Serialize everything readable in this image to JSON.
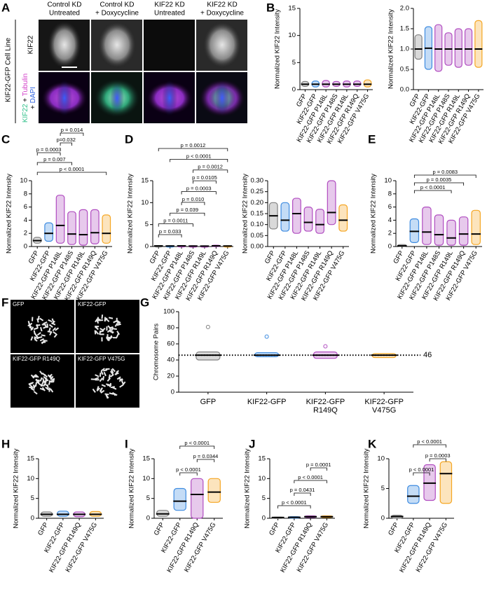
{
  "figure": {
    "panels": [
      "A",
      "B",
      "C",
      "D",
      "E",
      "F",
      "G",
      "H",
      "I",
      "J",
      "K"
    ],
    "a": {
      "headers": [
        [
          "Control KD",
          "Untreated"
        ],
        [
          "Control KD",
          "+ Doxycycline"
        ],
        [
          "KIF22 KD",
          "Untreated"
        ],
        [
          "KIF22 KD",
          "+ Doxycycline"
        ]
      ],
      "row1": "KIF22",
      "row2": [
        [
          "KIF22",
          " + ",
          "Tubulin"
        ],
        [
          "+ ",
          "DAPI"
        ]
      ],
      "side": "KIF22-GFP Cell Line"
    },
    "f": {
      "labels": [
        "GFP",
        "KIF22-GFP",
        "KIF22-GFP R149Q",
        "KIF22-GFP V475G"
      ]
    }
  },
  "chart_data": [
    {
      "type": "strip",
      "ylabel": "Normalized KIF22 Intensity",
      "categories": [
        "GFP",
        "KIF22-GFP",
        "KIF22-GFP P148L",
        "KIF22-GFP P148S",
        "KIF22-GFP R149L",
        "KIF22-GFP R149Q",
        "KIF22-GFP V475G"
      ],
      "colors": [
        "#808080",
        "#3d8be0",
        "#b04cc0",
        "#b04cc0",
        "#b04cc0",
        "#b04cc0",
        "#f5a623"
      ],
      "values": [
        1,
        1,
        1,
        1,
        1,
        1,
        1
      ],
      "spread": [
        [
          0.6,
          1.5
        ],
        [
          0.5,
          1.6
        ],
        [
          0.5,
          1.7
        ],
        [
          0.6,
          1.5
        ],
        [
          0.5,
          1.6
        ],
        [
          0.6,
          1.6
        ],
        [
          0.5,
          1.8
        ]
      ],
      "ylim": [
        0,
        15
      ],
      "yticks": [
        0,
        5,
        10,
        15
      ]
    },
    {
      "type": "strip",
      "ylabel": "Normalized KIF22 Intensity",
      "categories": [
        "GFP",
        "KIF22-GFP",
        "KIF22-GFP P148L",
        "KIF22-GFP P148S",
        "KIF22-GFP R149L",
        "KIF22-GFP R149Q",
        "KIF22-GFP V475G"
      ],
      "colors": [
        "#808080",
        "#3d8be0",
        "#b04cc0",
        "#b04cc0",
        "#b04cc0",
        "#b04cc0",
        "#f5a623"
      ],
      "values": [
        1,
        1.02,
        1,
        1,
        1,
        1,
        1
      ],
      "spread": [
        [
          0.75,
          1.35
        ],
        [
          0.5,
          1.55
        ],
        [
          0.45,
          1.6
        ],
        [
          0.6,
          1.4
        ],
        [
          0.55,
          1.5
        ],
        [
          0.6,
          1.5
        ],
        [
          0.55,
          1.7
        ]
      ],
      "ylim": [
        0,
        2
      ],
      "yticks": [
        {
          "value": 0,
          "label": "0.0"
        },
        0.5,
        {
          "value": 1,
          "label": "1.0"
        },
        1.5,
        {
          "value": 2,
          "label": "2.0"
        }
      ]
    },
    {
      "type": "strip",
      "ylabel": "Normalized KIF22 Intensity",
      "categories": [
        "GFP",
        "KIF22-GFP",
        "KIF22-GFP P148L",
        "KIF22-GFP P148S",
        "KIF22-GFP R149L",
        "KIF22-GFP R149Q",
        "KIF22-GFP V475G"
      ],
      "colors": [
        "#808080",
        "#3d8be0",
        "#b04cc0",
        "#b04cc0",
        "#b04cc0",
        "#b04cc0",
        "#f5a623"
      ],
      "values": [
        0.9,
        2,
        3.2,
        1.9,
        1.8,
        2.1,
        2
      ],
      "spread": [
        [
          0.5,
          1.4
        ],
        [
          0.8,
          3.6
        ],
        [
          0.5,
          7.8
        ],
        [
          0.3,
          5.3
        ],
        [
          0.2,
          5.6
        ],
        [
          0.4,
          5.6
        ],
        [
          0.5,
          4.8
        ]
      ],
      "ylim": [
        0,
        10
      ],
      "yticks": [
        0,
        2,
        4,
        6,
        8,
        10
      ],
      "comparisons": [
        {
          "label": "p < 0.0001",
          "from": 0,
          "to": 6
        },
        {
          "label": "p = 0.007",
          "from": 0,
          "to": 3
        },
        {
          "label": "p = 0.0003",
          "from": 0,
          "to": 2
        },
        {
          "label": "p=0.032",
          "from": 2,
          "to": 3
        },
        {
          "label": "p = 0.014",
          "from": 2,
          "to": 4
        }
      ]
    },
    {
      "type": "strip",
      "ylabel": "Normalized KIF22 Intensity",
      "categories": [
        "GFP",
        "KIF22-GFP",
        "KIF22-GFP P148L",
        "KIF22-GFP P148S",
        "KIF22-GFP R149L",
        "KIF22-GFP R149Q",
        "KIF22-GFP V475G"
      ],
      "colors": [
        "#808080",
        "#3d8be0",
        "#b04cc0",
        "#b04cc0",
        "#b04cc0",
        "#b04cc0",
        "#f5a623"
      ],
      "values": [
        0.14,
        0.12,
        0.15,
        0.11,
        0.1,
        0.155,
        0.12
      ],
      "spread": [
        [
          0.08,
          0.2
        ],
        [
          0.07,
          0.2
        ],
        [
          0.06,
          0.22
        ],
        [
          0.07,
          0.18
        ],
        [
          0.06,
          0.17
        ],
        [
          0.1,
          0.3
        ],
        [
          0.07,
          0.19
        ]
      ],
      "ylim": [
        0,
        15
      ],
      "yticks": [
        0,
        5,
        10,
        15
      ],
      "comparisons": [
        {
          "label": "p = 0.033",
          "from": 0,
          "to": 2
        },
        {
          "label": "p = 0.0011",
          "from": 0,
          "to": 3
        },
        {
          "label": "p = 0.039",
          "from": 1,
          "to": 4
        },
        {
          "label": "p = 0.010",
          "from": 2,
          "to": 4
        },
        {
          "label": "p = 0.0003",
          "from": 2,
          "to": 5
        },
        {
          "label": "p = 0.0105",
          "from": 3,
          "to": 5
        },
        {
          "label": "p = 0.0012",
          "from": 3,
          "to": 6
        },
        {
          "label": "p < 0.0001",
          "from": 1,
          "to": 6
        },
        {
          "label": "p = 0.0012",
          "from": 0,
          "to": 6
        }
      ]
    },
    {
      "type": "strip",
      "ylabel": "Normalized KIF22 Intensity",
      "categories": [
        "GFP",
        "KIF22-GFP",
        "KIF22-GFP P148L",
        "KIF22-GFP P148S",
        "KIF22-GFP R149L",
        "KIF22-GFP R149Q",
        "KIF22-GFP V475G"
      ],
      "colors": [
        "#808080",
        "#3d8be0",
        "#b04cc0",
        "#b04cc0",
        "#b04cc0",
        "#b04cc0",
        "#f5a623"
      ],
      "values": [
        0.14,
        0.12,
        0.15,
        0.11,
        0.1,
        0.155,
        0.12
      ],
      "spread": [
        [
          0.08,
          0.2
        ],
        [
          0.07,
          0.2
        ],
        [
          0.06,
          0.22
        ],
        [
          0.07,
          0.18
        ],
        [
          0.06,
          0.17
        ],
        [
          0.1,
          0.3
        ],
        [
          0.07,
          0.19
        ]
      ],
      "ylim": [
        0,
        0.3
      ],
      "yticks": [
        {
          "value": 0,
          "label": "0.00"
        },
        0.05,
        {
          "value": 0.1,
          "label": "0.10"
        },
        0.15,
        {
          "value": 0.2,
          "label": "0.20"
        },
        0.25,
        {
          "value": 0.3,
          "label": "0.30"
        }
      ]
    },
    {
      "type": "strip",
      "ylabel": "Normalized KIF22 Intensity",
      "categories": [
        "GFP",
        "KIF22-GFP",
        "KIF22-GFP P148L",
        "KIF22-GFP P148S",
        "KIF22-GFP R149L",
        "KIF22-GFP R149Q",
        "KIF22-GFP V475G"
      ],
      "colors": [
        "#808080",
        "#3d8be0",
        "#b04cc0",
        "#b04cc0",
        "#b04cc0",
        "#b04cc0",
        "#f5a623"
      ],
      "values": [
        0.1,
        2.3,
        2.2,
        1.8,
        1.3,
        1.9,
        1.9
      ],
      "spread": [
        [
          0,
          0.3
        ],
        [
          0.6,
          4.2
        ],
        [
          0.3,
          6
        ],
        [
          0.2,
          4.8
        ],
        [
          0.2,
          4
        ],
        [
          0.2,
          4.5
        ],
        [
          0.3,
          5.5
        ]
      ],
      "ylim": [
        0,
        10
      ],
      "yticks": [
        0,
        2,
        4,
        6,
        8,
        10
      ],
      "comparisons": [
        {
          "label": "p < 0.0001",
          "from": 1,
          "to": 4
        },
        {
          "label": "p = 0.0035",
          "from": 1,
          "to": 5
        },
        {
          "label": "p = 0.0083",
          "from": 1,
          "to": 6
        }
      ]
    },
    {
      "type": "strip",
      "ylabel": "Chromosome Pairs",
      "categories": [
        [
          "GFP"
        ],
        [
          "KIF22-GFP"
        ],
        [
          "KIF22-GFP",
          "R149Q"
        ],
        [
          "KIF22-GFP",
          "V475G"
        ]
      ],
      "colors": [
        "#808080",
        "#3d8be0",
        "#b04cc0",
        "#f5a623"
      ],
      "values": [
        46,
        46,
        46,
        46
      ],
      "spread": [
        [
          40,
          50
        ],
        [
          44,
          49
        ],
        [
          42,
          50
        ],
        [
          43,
          48
        ]
      ],
      "outliers": [
        [
          81
        ],
        [
          69
        ],
        [
          57
        ],
        []
      ],
      "reference": 46,
      "ylim": [
        0,
        100
      ],
      "yticks": [
        0,
        20,
        40,
        60,
        80,
        100
      ]
    },
    {
      "type": "strip",
      "ylabel": "Normalized KIF22 Intensity",
      "categories": [
        "GFP",
        "KIF22-GFP",
        "KIF22-GFP R149Q",
        "KIF22-GFP V475G"
      ],
      "colors": [
        "#808080",
        "#3d8be0",
        "#b04cc0",
        "#f5a623"
      ],
      "values": [
        1,
        1,
        1,
        1
      ],
      "spread": [
        [
          0.5,
          1.6
        ],
        [
          0.5,
          1.8
        ],
        [
          0.4,
          1.6
        ],
        [
          0.5,
          1.7
        ]
      ],
      "ylim": [
        0,
        15
      ],
      "yticks": [
        0,
        5,
        10,
        15
      ]
    },
    {
      "type": "strip",
      "ylabel": "Normalized KIF22 Intensity",
      "categories": [
        "GFP",
        "KIF22-GFP",
        "KIF22-GFP R149Q",
        "KIF22-GFP V475G"
      ],
      "colors": [
        "#808080",
        "#3d8be0",
        "#b04cc0",
        "#f5a623"
      ],
      "values": [
        1.1,
        4.3,
        6,
        6.6
      ],
      "spread": [
        [
          0.5,
          2
        ],
        [
          2,
          7.5
        ],
        [
          0,
          10
        ],
        [
          4,
          10
        ]
      ],
      "ylim": [
        0,
        15
      ],
      "yticks": [
        0,
        5,
        10,
        15
      ],
      "comparisons": [
        {
          "label": "p < 0.0001",
          "from": 1,
          "to": 2
        },
        {
          "label": "p = 0.0344",
          "from": 2,
          "to": 3
        },
        {
          "label": "p < 0.0001",
          "from": 1,
          "to": 3
        }
      ]
    },
    {
      "type": "strip",
      "ylabel": "Normalized KIF22 Intensity",
      "categories": [
        "GFP",
        "KIF22-GFP",
        "KIF22-GFP R149Q",
        "KIF22-GFP V475G"
      ],
      "colors": [
        "#808080",
        "#3d8be0",
        "#b04cc0",
        "#f5a623"
      ],
      "values": [
        0.2,
        0.25,
        0.4,
        0.4
      ],
      "spread": [
        [
          0.1,
          0.3
        ],
        [
          0.1,
          0.4
        ],
        [
          0.2,
          0.6
        ],
        [
          0.2,
          0.6
        ]
      ],
      "ylim": [
        0,
        15
      ],
      "yticks": [
        0,
        5,
        10,
        15
      ],
      "comparisons": [
        {
          "label": "p < 0.0001",
          "from": 0,
          "to": 2
        },
        {
          "label": "p = 0.0431",
          "from": 1,
          "to": 2
        },
        {
          "label": "p < 0.0001",
          "from": 1,
          "to": 3
        },
        {
          "label": "p = 0.0001",
          "from": 2,
          "to": 3
        }
      ]
    },
    {
      "type": "strip",
      "ylabel": "Normalized KIF22 Intensity",
      "categories": [
        "GFP",
        "KIF22-GFP",
        "KIF22-GFP R149Q",
        "KIF22-GFP V475G"
      ],
      "colors": [
        "#808080",
        "#3d8be0",
        "#b04cc0",
        "#f5a623"
      ],
      "values": [
        0.3,
        3.7,
        5.9,
        7.5
      ],
      "spread": [
        [
          0,
          0.5
        ],
        [
          2.5,
          5.5
        ],
        [
          3,
          9
        ],
        [
          2.5,
          9.5
        ]
      ],
      "ylim": [
        0,
        10
      ],
      "yticks": [
        0,
        5,
        10
      ],
      "comparisons": [
        {
          "label": "p < 0.0001",
          "from": 1,
          "to": 2
        },
        {
          "label": "p = 0.0003",
          "from": 2,
          "to": 3
        },
        {
          "label": "p < 0.0001",
          "from": 1,
          "to": 3
        }
      ]
    }
  ]
}
